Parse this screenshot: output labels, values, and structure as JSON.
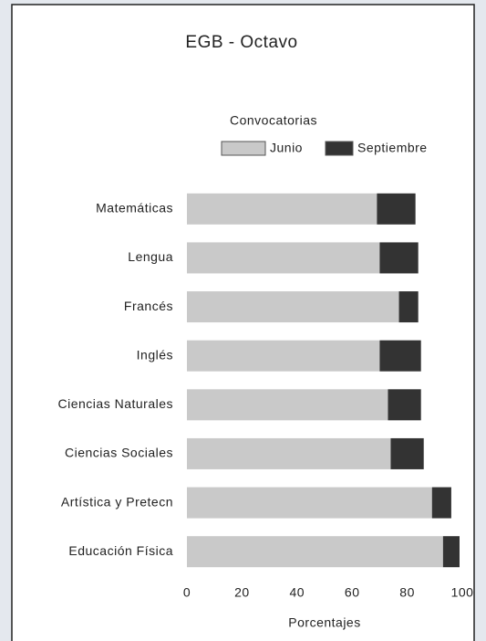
{
  "chart_data": {
    "type": "stacked_barh",
    "title": "EGB - Octavo",
    "legend_title": "Convocatorias",
    "categories": [
      "Matemáticas",
      "Lengua",
      "Francés",
      "Inglés",
      "Ciencias Naturales",
      "Ciencias Sociales",
      "Artística y Pretecn",
      "Educación Física"
    ],
    "series": [
      {
        "name": "Junio",
        "color": "#c9c9c9",
        "values": [
          69,
          70,
          77,
          70,
          73,
          74,
          89,
          93
        ]
      },
      {
        "name": "Septiembre",
        "color": "#333333",
        "values": [
          14,
          14,
          7,
          15,
          12,
          12,
          7,
          6
        ]
      }
    ],
    "xlim": [
      0,
      100
    ],
    "xticks": [
      0,
      20,
      40,
      60,
      80,
      100
    ],
    "xlabel": "Porcentajes"
  }
}
